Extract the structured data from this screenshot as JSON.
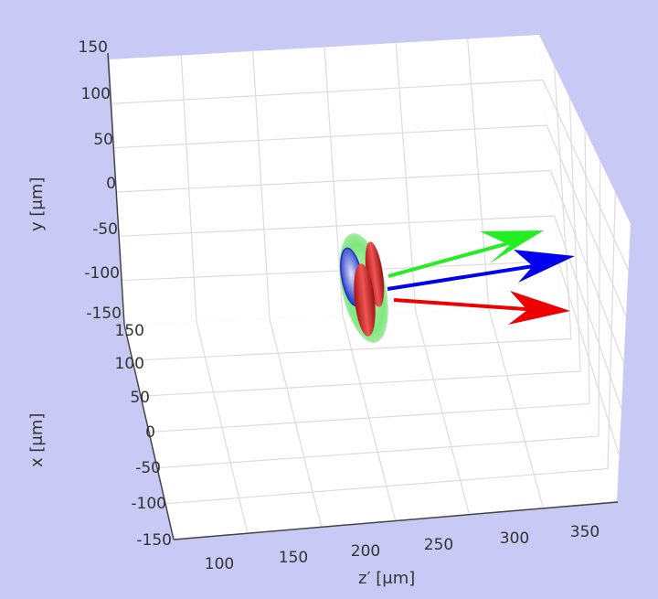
{
  "chart_data": {
    "type": "3d-vector-plot",
    "title": "",
    "axes": {
      "y": {
        "label": "y [μm]",
        "ticks": [
          "150",
          "100",
          "50",
          "0",
          "-50",
          "-100",
          "-150"
        ],
        "range": [
          -150,
          150
        ]
      },
      "x": {
        "label": "x [μm]",
        "ticks": [
          "150",
          "100",
          "50",
          "0",
          "-50",
          "-100",
          "-150"
        ],
        "range": [
          -150,
          150
        ]
      },
      "z": {
        "label": "z′ [μm]",
        "ticks": [
          "100",
          "150",
          "200",
          "250",
          "300",
          "350"
        ],
        "range": [
          75,
          375
        ]
      }
    },
    "grid": true,
    "objects": [
      {
        "name": "green-ellipsoid",
        "color": "#66ee66"
      },
      {
        "name": "blue-ellipsoid",
        "color": "#3344cc"
      },
      {
        "name": "red-ellipsoid",
        "color": "#cc2222"
      }
    ],
    "vectors": [
      {
        "name": "green-arrow",
        "color": "#22ee22"
      },
      {
        "name": "blue-arrow",
        "color": "#0000ee"
      },
      {
        "name": "red-arrow",
        "color": "#ee0000"
      }
    ],
    "background": "#c9c9f5"
  }
}
